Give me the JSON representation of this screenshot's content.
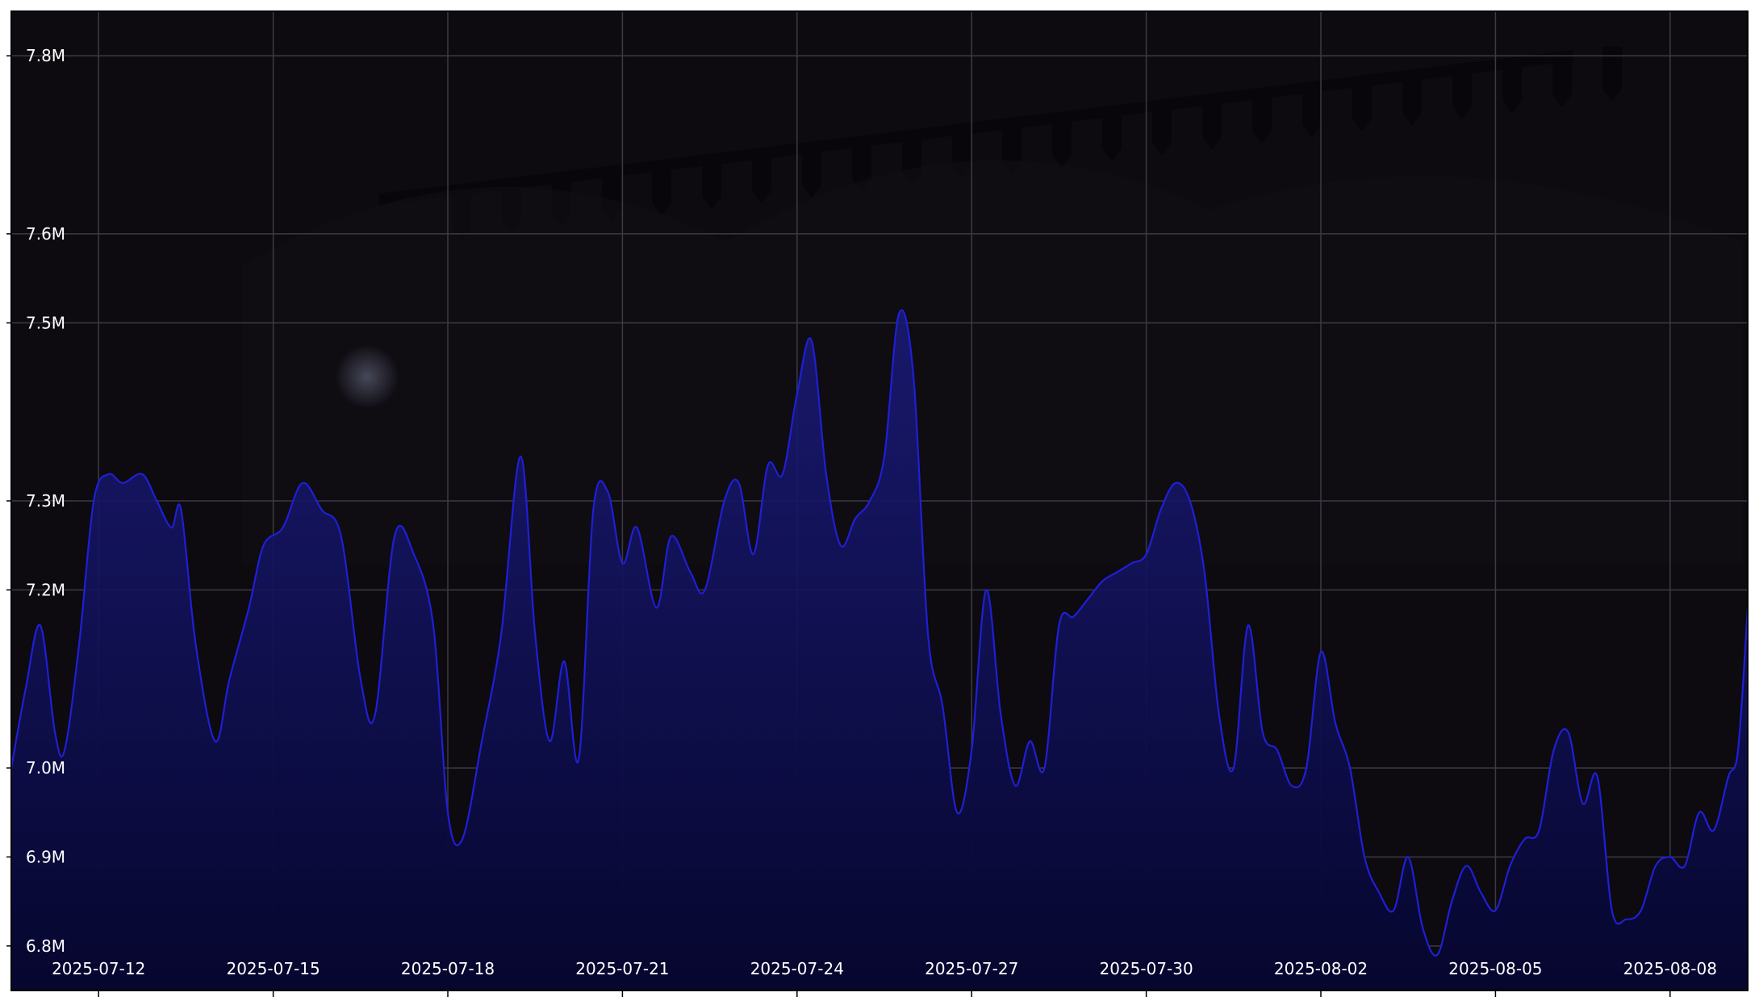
{
  "chart_data": {
    "type": "area",
    "title": "",
    "xlabel": "",
    "ylabel": "",
    "x_range": [
      "2025-07-10T12:00",
      "2025-08-09T08:00"
    ],
    "ylim": [
      6.75,
      7.85
    ],
    "y_ticks": [
      6.8,
      6.9,
      7.0,
      7.2,
      7.3,
      7.5,
      7.6,
      7.8
    ],
    "y_tick_labels": [
      "6.8M",
      "6.9M",
      "7.0M",
      "7.2M",
      "7.3M",
      "7.5M",
      "7.6M",
      "7.8M"
    ],
    "x_ticks": [
      "2025-07-12",
      "2025-07-15",
      "2025-07-18",
      "2025-07-21",
      "2025-07-24",
      "2025-07-27",
      "2025-07-30",
      "2025-08-02",
      "2025-08-05",
      "2025-08-08"
    ],
    "grid": true,
    "legend": "none",
    "colors": {
      "background": "#0d0a10",
      "line": "#1f1fd6",
      "fill_top": "#1a1a7a",
      "fill_bottom": "#06062e",
      "grid": "#3c3a44",
      "tick_label": "#ffffff",
      "frame": "#000000"
    },
    "series": [
      {
        "points": [
          [
            "2025-07-10T12:00",
            7.0
          ],
          [
            "2025-07-10T18:00",
            7.09
          ],
          [
            "2025-07-11T00:00",
            7.16
          ],
          [
            "2025-07-11T06:00",
            7.04
          ],
          [
            "2025-07-11T10:00",
            7.02
          ],
          [
            "2025-07-11T16:00",
            7.14
          ],
          [
            "2025-07-11T22:00",
            7.3
          ],
          [
            "2025-07-12T04:00",
            7.33
          ],
          [
            "2025-07-12T10:00",
            7.32
          ],
          [
            "2025-07-12T18:00",
            7.33
          ],
          [
            "2025-07-13T00:00",
            7.3
          ],
          [
            "2025-07-13T06:00",
            7.27
          ],
          [
            "2025-07-13T10:00",
            7.29
          ],
          [
            "2025-07-13T16:00",
            7.14
          ],
          [
            "2025-07-14T00:00",
            7.03
          ],
          [
            "2025-07-14T06:00",
            7.1
          ],
          [
            "2025-07-14T14:00",
            7.18
          ],
          [
            "2025-07-14T20:00",
            7.25
          ],
          [
            "2025-07-15T04:00",
            7.27
          ],
          [
            "2025-07-15T12:00",
            7.32
          ],
          [
            "2025-07-15T20:00",
            7.29
          ],
          [
            "2025-07-16T04:00",
            7.26
          ],
          [
            "2025-07-16T12:00",
            7.1
          ],
          [
            "2025-07-16T18:00",
            7.06
          ],
          [
            "2025-07-17T02:00",
            7.26
          ],
          [
            "2025-07-17T10:00",
            7.24
          ],
          [
            "2025-07-17T18:00",
            7.16
          ],
          [
            "2025-07-18T00:00",
            6.95
          ],
          [
            "2025-07-18T06:00",
            6.92
          ],
          [
            "2025-07-18T14:00",
            7.03
          ],
          [
            "2025-07-18T22:00",
            7.15
          ],
          [
            "2025-07-19T06:00",
            7.35
          ],
          [
            "2025-07-19T12:00",
            7.15
          ],
          [
            "2025-07-19T18:00",
            7.03
          ],
          [
            "2025-07-20T00:00",
            7.12
          ],
          [
            "2025-07-20T06:00",
            7.01
          ],
          [
            "2025-07-20T12:00",
            7.29
          ],
          [
            "2025-07-20T18:00",
            7.31
          ],
          [
            "2025-07-21T00:00",
            7.23
          ],
          [
            "2025-07-21T06:00",
            7.27
          ],
          [
            "2025-07-21T14:00",
            7.18
          ],
          [
            "2025-07-21T20:00",
            7.26
          ],
          [
            "2025-07-22T04:00",
            7.22
          ],
          [
            "2025-07-22T10:00",
            7.2
          ],
          [
            "2025-07-22T18:00",
            7.3
          ],
          [
            "2025-07-23T00:00",
            7.32
          ],
          [
            "2025-07-23T06:00",
            7.24
          ],
          [
            "2025-07-23T12:00",
            7.34
          ],
          [
            "2025-07-23T18:00",
            7.33
          ],
          [
            "2025-07-24T00:00",
            7.42
          ],
          [
            "2025-07-24T06:00",
            7.48
          ],
          [
            "2025-07-24T12:00",
            7.33
          ],
          [
            "2025-07-24T18:00",
            7.25
          ],
          [
            "2025-07-25T00:00",
            7.28
          ],
          [
            "2025-07-25T06:00",
            7.3
          ],
          [
            "2025-07-25T12:00",
            7.35
          ],
          [
            "2025-07-25T18:00",
            7.51
          ],
          [
            "2025-07-26T00:00",
            7.44
          ],
          [
            "2025-07-26T06:00",
            7.15
          ],
          [
            "2025-07-26T12:00",
            7.07
          ],
          [
            "2025-07-26T18:00",
            6.95
          ],
          [
            "2025-07-27T00:00",
            7.02
          ],
          [
            "2025-07-27T06:00",
            7.2
          ],
          [
            "2025-07-27T12:00",
            7.06
          ],
          [
            "2025-07-27T18:00",
            6.98
          ],
          [
            "2025-07-28T00:00",
            7.03
          ],
          [
            "2025-07-28T06:00",
            7.0
          ],
          [
            "2025-07-28T12:00",
            7.16
          ],
          [
            "2025-07-28T18:00",
            7.17
          ],
          [
            "2025-07-29T00:00",
            7.19
          ],
          [
            "2025-07-29T06:00",
            7.21
          ],
          [
            "2025-07-29T12:00",
            7.22
          ],
          [
            "2025-07-29T18:00",
            7.23
          ],
          [
            "2025-07-30T00:00",
            7.24
          ],
          [
            "2025-07-30T06:00",
            7.29
          ],
          [
            "2025-07-30T12:00",
            7.32
          ],
          [
            "2025-07-30T18:00",
            7.3
          ],
          [
            "2025-07-31T00:00",
            7.22
          ],
          [
            "2025-07-31T06:00",
            7.06
          ],
          [
            "2025-07-31T12:00",
            7.0
          ],
          [
            "2025-07-31T18:00",
            7.16
          ],
          [
            "2025-08-01T00:00",
            7.04
          ],
          [
            "2025-08-01T06:00",
            7.02
          ],
          [
            "2025-08-01T12:00",
            6.98
          ],
          [
            "2025-08-01T18:00",
            7.0
          ],
          [
            "2025-08-02T00:00",
            7.13
          ],
          [
            "2025-08-02T06:00",
            7.05
          ],
          [
            "2025-08-02T12:00",
            7.0
          ],
          [
            "2025-08-02T18:00",
            6.9
          ],
          [
            "2025-08-03T00:00",
            6.86
          ],
          [
            "2025-08-03T06:00",
            6.84
          ],
          [
            "2025-08-03T12:00",
            6.9
          ],
          [
            "2025-08-03T18:00",
            6.82
          ],
          [
            "2025-08-04T00:00",
            6.79
          ],
          [
            "2025-08-04T06:00",
            6.85
          ],
          [
            "2025-08-04T12:00",
            6.89
          ],
          [
            "2025-08-04T18:00",
            6.86
          ],
          [
            "2025-08-05T00:00",
            6.84
          ],
          [
            "2025-08-05T06:00",
            6.89
          ],
          [
            "2025-08-05T12:00",
            6.92
          ],
          [
            "2025-08-05T18:00",
            6.93
          ],
          [
            "2025-08-06T00:00",
            7.02
          ],
          [
            "2025-08-06T06:00",
            7.04
          ],
          [
            "2025-08-06T12:00",
            6.96
          ],
          [
            "2025-08-06T18:00",
            6.99
          ],
          [
            "2025-08-07T00:00",
            6.84
          ],
          [
            "2025-08-07T06:00",
            6.83
          ],
          [
            "2025-08-07T12:00",
            6.84
          ],
          [
            "2025-08-07T18:00",
            6.89
          ],
          [
            "2025-08-08T00:00",
            6.9
          ],
          [
            "2025-08-08T06:00",
            6.89
          ],
          [
            "2025-08-08T12:00",
            6.95
          ],
          [
            "2025-08-08T18:00",
            6.93
          ],
          [
            "2025-08-09T00:00",
            6.99
          ],
          [
            "2025-08-09T04:00",
            7.02
          ],
          [
            "2025-08-09T08:00",
            7.18
          ]
        ]
      }
    ]
  }
}
